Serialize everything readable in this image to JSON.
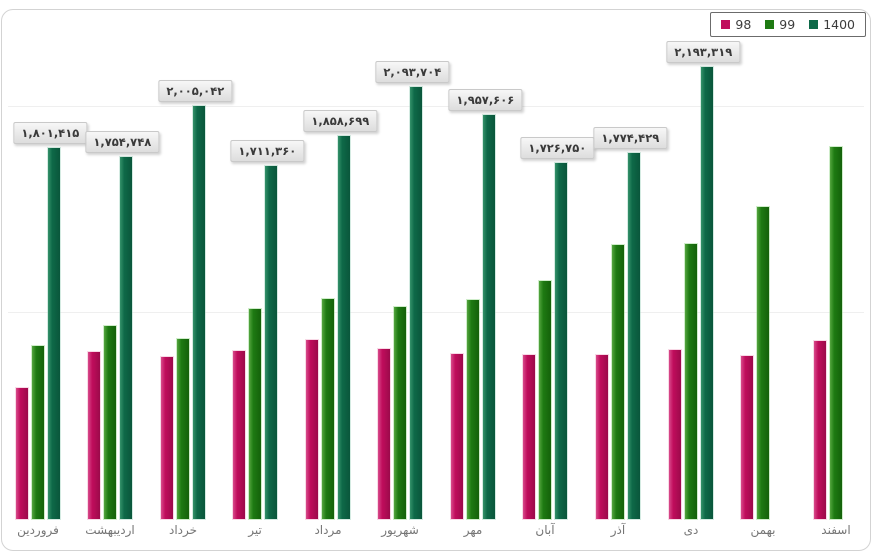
{
  "legend": {
    "items": [
      {
        "label": "98",
        "color": "#c00d5c"
      },
      {
        "label": "99",
        "color": "#1e7a12"
      },
      {
        "label": "1400",
        "color": "#0e6948"
      }
    ]
  },
  "chart_data": {
    "type": "bar",
    "title": "",
    "xlabel": "",
    "ylabel": "",
    "ylim": [
      0,
      2450000
    ],
    "grid": "very faint horizontal lines at 1,000,000 and 2,000,000",
    "legend_position": "top-right",
    "categories": [
      "فروردین",
      "اردیبهشت",
      "خرداد",
      "تیر",
      "مرداد",
      "شهریور",
      "مهر",
      "آبان",
      "آذر",
      "دی",
      "بهمن",
      "اسفند"
    ],
    "series": [
      {
        "name": "98",
        "color": "#c00d5c",
        "values": [
          635000,
          810000,
          786000,
          815000,
          868000,
          824000,
          800000,
          795000,
          795000,
          820000,
          790000,
          863000
        ]
      },
      {
        "name": "99",
        "color": "#1e7a12",
        "values": [
          839000,
          936000,
          873000,
          1018000,
          1067000,
          1028000,
          1062000,
          1154000,
          1329000,
          1334000,
          1513000,
          1804000
        ]
      },
      {
        "name": "1400",
        "color": "#0e6948",
        "values": [
          1801415,
          1754748,
          2005042,
          1711360,
          1858699,
          2093704,
          1957606,
          1726750,
          1774429,
          2193319,
          null,
          null
        ],
        "data_labels": [
          "۱,۸۰۱,۴۱۵",
          "۱,۷۵۴,۷۴۸",
          "۲,۰۰۵,۰۴۲",
          "۱,۷۱۱,۳۶۰",
          "۱,۸۵۸,۶۹۹",
          "۲,۰۹۳,۷۰۴",
          "۱,۹۵۷,۶۰۶",
          "۱,۷۲۶,۷۵۰",
          "۱,۷۷۴,۴۲۹",
          "۲,۱۹۳,۳۱۹",
          null,
          null
        ]
      }
    ],
    "gridline_values": [
      1000000,
      2000000
    ]
  }
}
